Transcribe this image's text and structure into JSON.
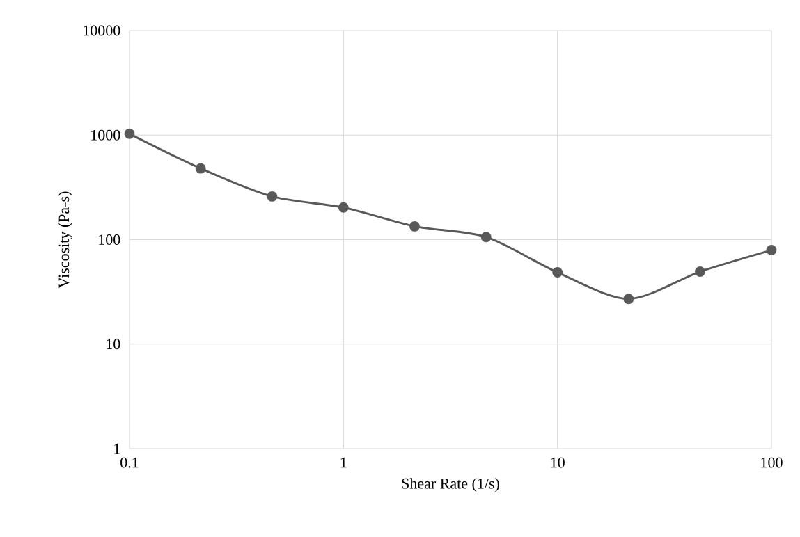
{
  "chart_data": {
    "type": "line",
    "xlabel": "Shear Rate (1/s)",
    "ylabel": "Viscosity (Pa-s)",
    "x": [
      0.1,
      0.215,
      0.464,
      1,
      2.15,
      4.64,
      10,
      21.5,
      46.4,
      100
    ],
    "series": [
      {
        "color": "#595959",
        "values": [
          1030,
          480,
          259,
          203,
          134,
          106,
          48.6,
          27.1,
          49.4,
          79.4
        ]
      }
    ],
    "xlim": [
      0.1,
      100
    ],
    "ylim": [
      1,
      10000
    ],
    "xticks": [
      0.1,
      1,
      10,
      100
    ],
    "yticks": [
      1,
      10,
      100,
      1000,
      10000
    ],
    "log": "xy",
    "grid": true,
    "marker": "circle",
    "line_style": "solid"
  }
}
